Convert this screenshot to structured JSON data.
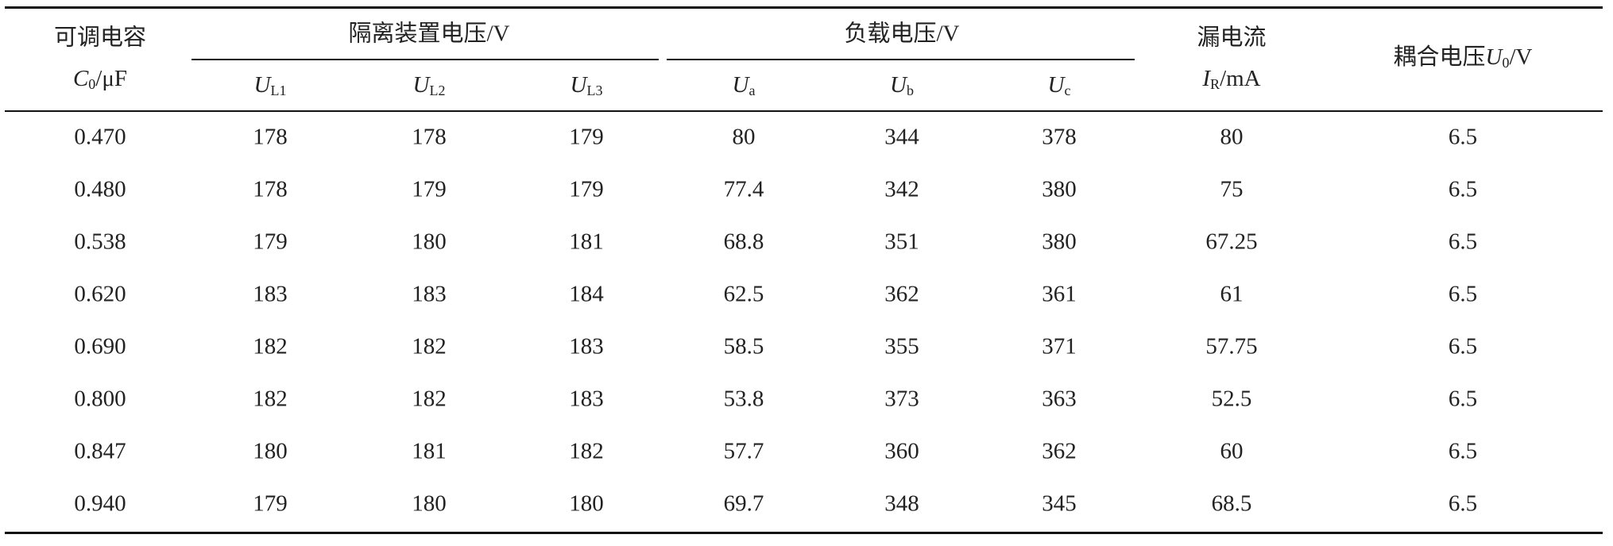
{
  "table": {
    "header": {
      "capacitance": {
        "name": "可调电容",
        "symbol": "C",
        "sub": "0",
        "unit": "/μF"
      },
      "isolation": {
        "name": "隔离装置电压/V",
        "columns": [
          {
            "symbol": "U",
            "sub": "L1"
          },
          {
            "symbol": "U",
            "sub": "L2"
          },
          {
            "symbol": "U",
            "sub": "L3"
          }
        ]
      },
      "load": {
        "name": "负载电压/V",
        "columns": [
          {
            "symbol": "U",
            "sub": "a"
          },
          {
            "symbol": "U",
            "sub": "b"
          },
          {
            "symbol": "U",
            "sub": "c"
          }
        ]
      },
      "leakage": {
        "name": "漏电流",
        "symbol": "I",
        "sub": "R",
        "unit": "/mA"
      },
      "coupling": {
        "name": "耦合电压",
        "symbol": "U",
        "sub": "0",
        "unit": "/V"
      }
    },
    "rows": [
      [
        "0.470",
        "178",
        "178",
        "179",
        "80",
        "344",
        "378",
        "80",
        "6.5"
      ],
      [
        "0.480",
        "178",
        "179",
        "179",
        "77.4",
        "342",
        "380",
        "75",
        "6.5"
      ],
      [
        "0.538",
        "179",
        "180",
        "181",
        "68.8",
        "351",
        "380",
        "67.25",
        "6.5"
      ],
      [
        "0.620",
        "183",
        "183",
        "184",
        "62.5",
        "362",
        "361",
        "61",
        "6.5"
      ],
      [
        "0.690",
        "182",
        "182",
        "183",
        "58.5",
        "355",
        "371",
        "57.75",
        "6.5"
      ],
      [
        "0.800",
        "182",
        "182",
        "183",
        "53.8",
        "373",
        "363",
        "52.5",
        "6.5"
      ],
      [
        "0.847",
        "180",
        "181",
        "182",
        "57.7",
        "360",
        "362",
        "60",
        "6.5"
      ],
      [
        "0.940",
        "179",
        "180",
        "180",
        "69.7",
        "348",
        "345",
        "68.5",
        "6.5"
      ]
    ]
  }
}
